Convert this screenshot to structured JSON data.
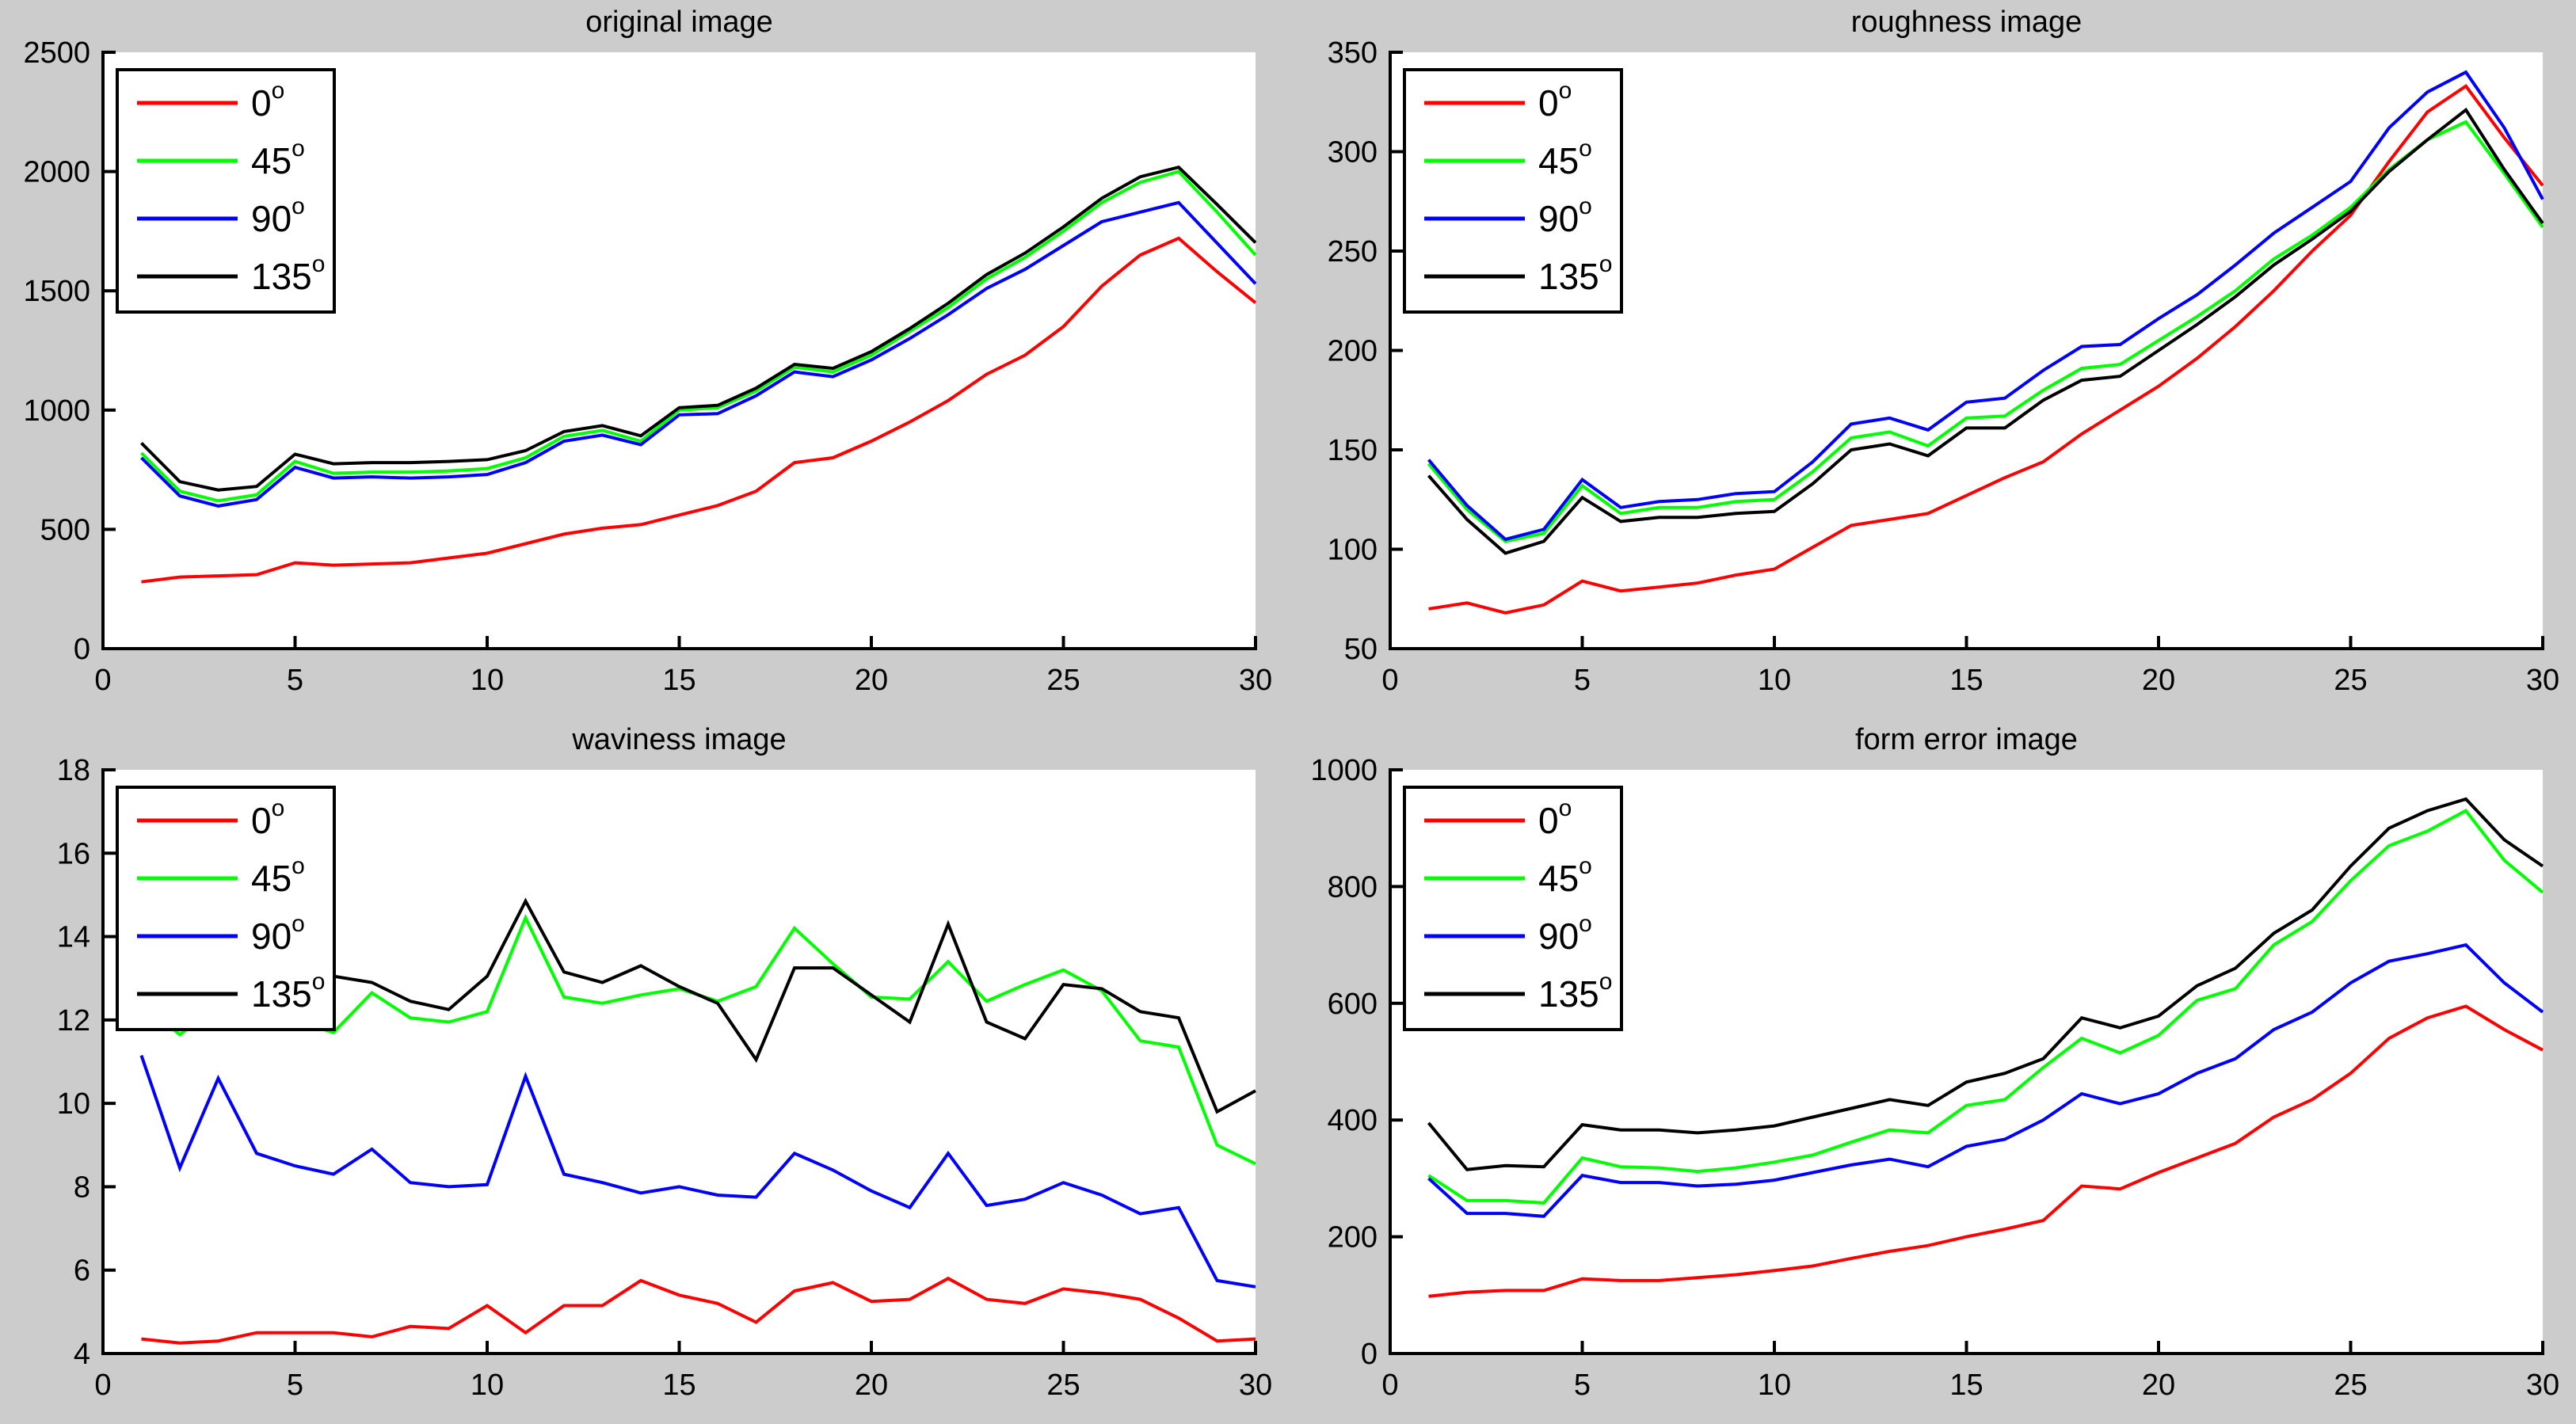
{
  "window": {
    "background": "#cccccc",
    "plot_background": "#ffffff",
    "axis_color": "#000000",
    "text_color": "#000000"
  },
  "legend": {
    "position": "top-left",
    "items": [
      {
        "text": "0",
        "sup": "o",
        "color": "#ff0000"
      },
      {
        "text": "45",
        "sup": "o",
        "color": "#00ff00"
      },
      {
        "text": "90",
        "sup": "o",
        "color": "#0000ff"
      },
      {
        "text": "135",
        "sup": "o",
        "color": "#000000"
      }
    ]
  },
  "chart_data": [
    {
      "type": "line",
      "title": "original image",
      "xlabel": "",
      "ylabel": "",
      "grid": false,
      "legend_position": "top-left",
      "x": [
        1,
        2,
        3,
        4,
        5,
        6,
        7,
        8,
        9,
        10,
        11,
        12,
        13,
        14,
        15,
        16,
        17,
        18,
        19,
        20,
        21,
        22,
        23,
        24,
        25,
        26,
        27,
        28,
        29,
        30
      ],
      "xlim": [
        0,
        30
      ],
      "xticks": [
        0,
        5,
        10,
        15,
        20,
        25,
        30
      ],
      "ylim": [
        0,
        2500
      ],
      "yticks": [
        0,
        500,
        1000,
        1500,
        2000,
        2500
      ],
      "series": [
        {
          "name": "0°",
          "color": "#ff0000",
          "values": [
            280,
            300,
            305,
            310,
            360,
            350,
            355,
            360,
            380,
            400,
            440,
            480,
            505,
            520,
            560,
            600,
            660,
            780,
            800,
            870,
            950,
            1040,
            1150,
            1230,
            1350,
            1520,
            1650,
            1720,
            1580,
            1450
          ]
        },
        {
          "name": "45°",
          "color": "#00ff00",
          "values": [
            820,
            660,
            620,
            645,
            785,
            735,
            740,
            740,
            745,
            755,
            800,
            890,
            915,
            870,
            1000,
            1010,
            1080,
            1180,
            1160,
            1230,
            1330,
            1430,
            1550,
            1640,
            1750,
            1870,
            1955,
            2000,
            1830,
            1650
          ]
        },
        {
          "name": "90°",
          "color": "#0000ff",
          "values": [
            800,
            640,
            598,
            625,
            760,
            715,
            720,
            715,
            720,
            730,
            780,
            870,
            895,
            855,
            980,
            985,
            1060,
            1160,
            1140,
            1210,
            1300,
            1400,
            1510,
            1590,
            1690,
            1790,
            1830,
            1870,
            1700,
            1530
          ]
        },
        {
          "name": "135°",
          "color": "#000000",
          "values": [
            862,
            700,
            665,
            680,
            815,
            775,
            780,
            780,
            785,
            792,
            830,
            910,
            935,
            892,
            1010,
            1020,
            1092,
            1192,
            1175,
            1245,
            1342,
            1448,
            1568,
            1658,
            1768,
            1888,
            1978,
            2018,
            1862,
            1702
          ]
        }
      ]
    },
    {
      "type": "line",
      "title": "roughness image",
      "xlabel": "",
      "ylabel": "",
      "grid": false,
      "legend_position": "top-left",
      "x": [
        1,
        2,
        3,
        4,
        5,
        6,
        7,
        8,
        9,
        10,
        11,
        12,
        13,
        14,
        15,
        16,
        17,
        18,
        19,
        20,
        21,
        22,
        23,
        24,
        25,
        26,
        27,
        28,
        29,
        30
      ],
      "xlim": [
        0,
        30
      ],
      "xticks": [
        0,
        5,
        10,
        15,
        20,
        25,
        30
      ],
      "ylim": [
        50,
        350
      ],
      "yticks": [
        50,
        100,
        150,
        200,
        250,
        300,
        350
      ],
      "series": [
        {
          "name": "0°",
          "color": "#ff0000",
          "values": [
            70,
            73,
            68,
            72,
            84,
            79,
            81,
            83,
            87,
            90,
            101,
            112,
            115,
            118,
            127,
            136,
            144,
            158,
            170,
            182,
            196,
            212,
            230,
            250,
            268,
            295,
            320,
            333,
            307,
            283
          ]
        },
        {
          "name": "45°",
          "color": "#00ff00",
          "values": [
            143,
            120,
            104,
            108,
            132,
            118,
            121,
            121,
            124,
            125,
            139,
            156,
            159,
            152,
            166,
            167,
            180,
            191,
            193,
            205,
            217,
            230,
            246,
            258,
            272,
            291,
            306,
            315,
            289,
            262
          ]
        },
        {
          "name": "90°",
          "color": "#0000ff",
          "values": [
            145,
            122,
            105,
            110,
            135,
            121,
            124,
            125,
            128,
            129,
            144,
            163,
            166,
            160,
            174,
            176,
            190,
            202,
            203,
            216,
            228,
            243,
            259,
            272,
            285,
            312,
            330,
            340,
            312,
            276
          ]
        },
        {
          "name": "135°",
          "color": "#000000",
          "values": [
            137,
            115,
            98,
            104,
            126,
            114,
            116,
            116,
            118,
            119,
            133,
            150,
            153,
            147,
            161,
            161,
            175,
            185,
            187,
            200,
            213,
            227,
            243,
            256,
            270,
            290,
            306,
            321,
            291,
            264
          ]
        }
      ]
    },
    {
      "type": "line",
      "title": "waviness image",
      "xlabel": "",
      "ylabel": "",
      "grid": false,
      "legend_position": "top-left",
      "x": [
        1,
        2,
        3,
        4,
        5,
        6,
        7,
        8,
        9,
        10,
        11,
        12,
        13,
        14,
        15,
        16,
        17,
        18,
        19,
        20,
        21,
        22,
        23,
        24,
        25,
        26,
        27,
        28,
        29,
        30
      ],
      "xlim": [
        0,
        30
      ],
      "xticks": [
        0,
        5,
        10,
        15,
        20,
        25,
        30
      ],
      "ylim": [
        4,
        18
      ],
      "yticks": [
        4,
        6,
        8,
        10,
        12,
        14,
        16,
        18
      ],
      "series": [
        {
          "name": "0°",
          "color": "#ff0000",
          "values": [
            4.35,
            4.25,
            4.3,
            4.5,
            4.5,
            4.5,
            4.4,
            4.65,
            4.6,
            5.15,
            4.5,
            5.15,
            5.15,
            5.75,
            5.4,
            5.2,
            4.75,
            5.5,
            5.7,
            5.25,
            5.3,
            5.8,
            5.3,
            5.2,
            5.55,
            5.45,
            5.3,
            4.85,
            4.3,
            4.35
          ]
        },
        {
          "name": "45°",
          "color": "#00ff00",
          "values": [
            12.4,
            11.65,
            12.35,
            11.95,
            12.0,
            11.7,
            12.65,
            12.05,
            11.95,
            12.2,
            14.45,
            12.55,
            12.4,
            12.6,
            12.75,
            12.45,
            12.8,
            14.2,
            13.35,
            12.55,
            12.5,
            13.4,
            12.45,
            12.85,
            13.2,
            12.7,
            11.5,
            11.35,
            9.0,
            8.55
          ]
        },
        {
          "name": "90°",
          "color": "#0000ff",
          "values": [
            11.15,
            8.45,
            10.6,
            8.8,
            8.5,
            8.3,
            8.9,
            8.1,
            8.0,
            8.05,
            10.65,
            8.3,
            8.1,
            7.85,
            8.0,
            7.8,
            7.75,
            8.8,
            8.4,
            7.9,
            7.5,
            8.8,
            7.55,
            7.7,
            8.1,
            7.8,
            7.35,
            7.5,
            5.75,
            5.6
          ]
        },
        {
          "name": "135°",
          "color": "#000000",
          "values": [
            13.0,
            12.85,
            13.0,
            12.95,
            13.1,
            13.05,
            12.9,
            12.45,
            12.25,
            13.05,
            14.85,
            13.15,
            12.9,
            13.3,
            12.8,
            12.4,
            11.05,
            13.25,
            13.25,
            12.6,
            11.95,
            14.3,
            11.95,
            11.55,
            12.85,
            12.75,
            12.2,
            12.05,
            9.8,
            10.3
          ]
        }
      ]
    },
    {
      "type": "line",
      "title": "form error image",
      "xlabel": "",
      "ylabel": "",
      "grid": false,
      "legend_position": "top-left",
      "x": [
        1,
        2,
        3,
        4,
        5,
        6,
        7,
        8,
        9,
        10,
        11,
        12,
        13,
        14,
        15,
        16,
        17,
        18,
        19,
        20,
        21,
        22,
        23,
        24,
        25,
        26,
        27,
        28,
        29,
        30
      ],
      "xlim": [
        0,
        30
      ],
      "xticks": [
        0,
        5,
        10,
        15,
        20,
        25,
        30
      ],
      "ylim": [
        0,
        1000
      ],
      "yticks": [
        0,
        200,
        400,
        600,
        800,
        1000
      ],
      "series": [
        {
          "name": "0°",
          "color": "#ff0000",
          "values": [
            98,
            105,
            108,
            108,
            128,
            125,
            125,
            130,
            135,
            142,
            150,
            163,
            175,
            185,
            200,
            213,
            228,
            287,
            282,
            310,
            335,
            360,
            405,
            435,
            480,
            540,
            575,
            595,
            555,
            520
          ]
        },
        {
          "name": "45°",
          "color": "#00ff00",
          "values": [
            305,
            262,
            262,
            258,
            335,
            320,
            318,
            312,
            318,
            328,
            340,
            362,
            383,
            378,
            425,
            435,
            490,
            540,
            515,
            545,
            605,
            625,
            700,
            740,
            810,
            870,
            895,
            930,
            845,
            790
          ]
        },
        {
          "name": "90°",
          "color": "#0000ff",
          "values": [
            300,
            240,
            240,
            235,
            305,
            293,
            293,
            287,
            290,
            297,
            310,
            323,
            333,
            320,
            355,
            367,
            400,
            445,
            428,
            445,
            480,
            505,
            555,
            585,
            635,
            672,
            685,
            700,
            635,
            585
          ]
        },
        {
          "name": "135°",
          "color": "#000000",
          "values": [
            395,
            315,
            322,
            320,
            392,
            383,
            383,
            378,
            383,
            390,
            405,
            420,
            435,
            425,
            465,
            480,
            505,
            575,
            558,
            578,
            630,
            660,
            720,
            760,
            835,
            900,
            930,
            950,
            880,
            835
          ]
        }
      ]
    }
  ]
}
